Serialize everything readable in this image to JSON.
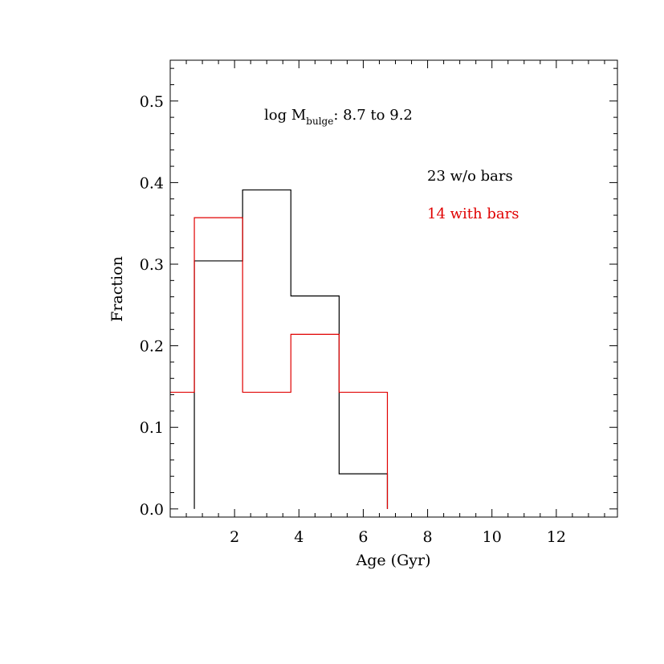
{
  "chart_data": {
    "type": "histogram",
    "xlabel": "Age (Gyr)",
    "ylabel": "Fraction",
    "xlim": [
      0,
      13.9
    ],
    "ylim": [
      -0.01,
      0.55
    ],
    "xticks": [
      2,
      4,
      6,
      8,
      10,
      12
    ],
    "xtick_labels": [
      "2",
      "4",
      "6",
      "8",
      "10",
      "12"
    ],
    "yticks": [
      0.0,
      0.1,
      0.2,
      0.3,
      0.4,
      0.5
    ],
    "ytick_labels": [
      "0.0",
      "0.1",
      "0.2",
      "0.3",
      "0.4",
      "0.5"
    ],
    "annotation": {
      "prefix": "log M",
      "subscript": "bulge",
      "suffix": ":  8.7 to  9.2"
    },
    "legend": [
      {
        "label": "23 w/o bars",
        "color": "#000000"
      },
      {
        "label": "14 with bars",
        "color": "#e00000"
      }
    ],
    "series": [
      {
        "color": "#000000",
        "bin_edges": [
          0.75,
          2.25,
          3.75,
          5.25,
          6.75
        ],
        "values": [
          0.304,
          0.391,
          0.261,
          0.043
        ]
      },
      {
        "color": "#e00000",
        "bin_edges": [
          -0.75,
          0.75,
          2.25,
          3.75,
          5.25,
          6.75
        ],
        "values": [
          0.143,
          0.357,
          0.143,
          0.214,
          0.143
        ]
      }
    ]
  }
}
